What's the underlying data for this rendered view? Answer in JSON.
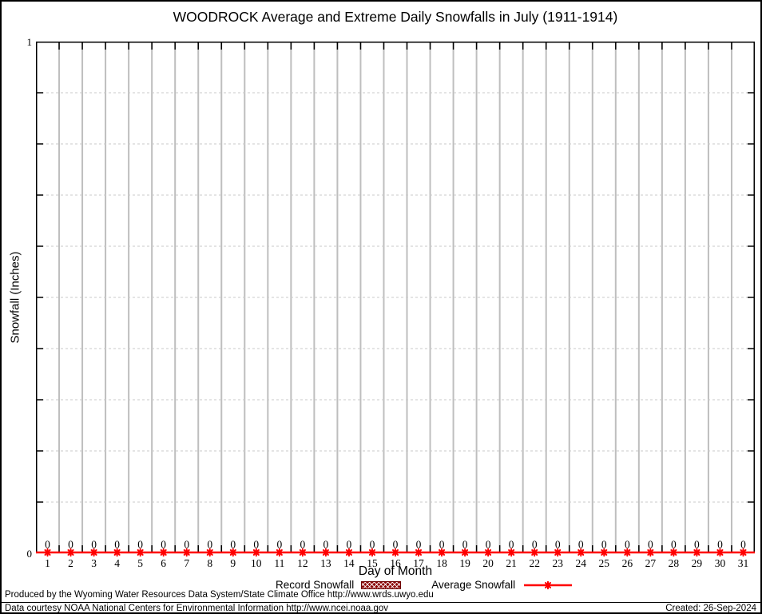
{
  "title": "WOODROCK Average and Extreme Daily Snowfalls in July (1911-1914)",
  "y_axis": {
    "label": "Snowfall (Inches)",
    "top_tick": "1",
    "bottom_tick": "0"
  },
  "x_axis": {
    "label": "Day of Month"
  },
  "chart_data": {
    "type": "line",
    "title": "WOODROCK Average and Extreme Daily Snowfalls in July (1911-1914)",
    "xlabel": "Day of Month",
    "ylabel": "Snowfall (Inches)",
    "xlim": [
      0.5,
      31.5
    ],
    "ylim": [
      0,
      1
    ],
    "ytick_labels": [
      "0",
      "1"
    ],
    "minor_ytick_step": 0.1,
    "grid": true,
    "legend_position": "bottom-center",
    "categories": [
      1,
      2,
      3,
      4,
      5,
      6,
      7,
      8,
      9,
      10,
      11,
      12,
      13,
      14,
      15,
      16,
      17,
      18,
      19,
      20,
      21,
      22,
      23,
      24,
      25,
      26,
      27,
      28,
      29,
      30,
      31
    ],
    "series": [
      {
        "name": "Record Snowfall",
        "style": "hatched-boxes",
        "color": "#8b0000",
        "values": [
          0,
          0,
          0,
          0,
          0,
          0,
          0,
          0,
          0,
          0,
          0,
          0,
          0,
          0,
          0,
          0,
          0,
          0,
          0,
          0,
          0,
          0,
          0,
          0,
          0,
          0,
          0,
          0,
          0,
          0,
          0
        ]
      },
      {
        "name": "Average Snowfall",
        "style": "line-points",
        "color": "#ff0000",
        "values": [
          0,
          0,
          0,
          0,
          0,
          0,
          0,
          0,
          0,
          0,
          0,
          0,
          0,
          0,
          0,
          0,
          0,
          0,
          0,
          0,
          0,
          0,
          0,
          0,
          0,
          0,
          0,
          0,
          0,
          0,
          0
        ]
      }
    ],
    "point_labels": [
      "0",
      "0",
      "0",
      "0",
      "0",
      "0",
      "0",
      "0",
      "0",
      "0",
      "0",
      "0",
      "0",
      "0",
      "0",
      "0",
      "0",
      "0",
      "0",
      "0",
      "0",
      "0",
      "0",
      "0",
      "0",
      "0",
      "0",
      "0",
      "0",
      "0",
      "0"
    ]
  },
  "legend": {
    "record_label": "Record Snowfall",
    "average_label": "Average Snowfall"
  },
  "footer": {
    "produced": "Produced by the Wyoming Water Resources Data System/State Climate Office http://www.wrds.uwyo.edu",
    "courtesy": "Data courtesy NOAA National Centers for Environmental Information http://www.ncei.noaa.gov",
    "created": "Created: 26-Sep-2024"
  },
  "colors": {
    "average_line": "#ff0000",
    "record_fill": "#8b0000",
    "grid_vertical": "#bebebe",
    "grid_horizontal": "#c9c9c9",
    "axis": "#000000"
  }
}
